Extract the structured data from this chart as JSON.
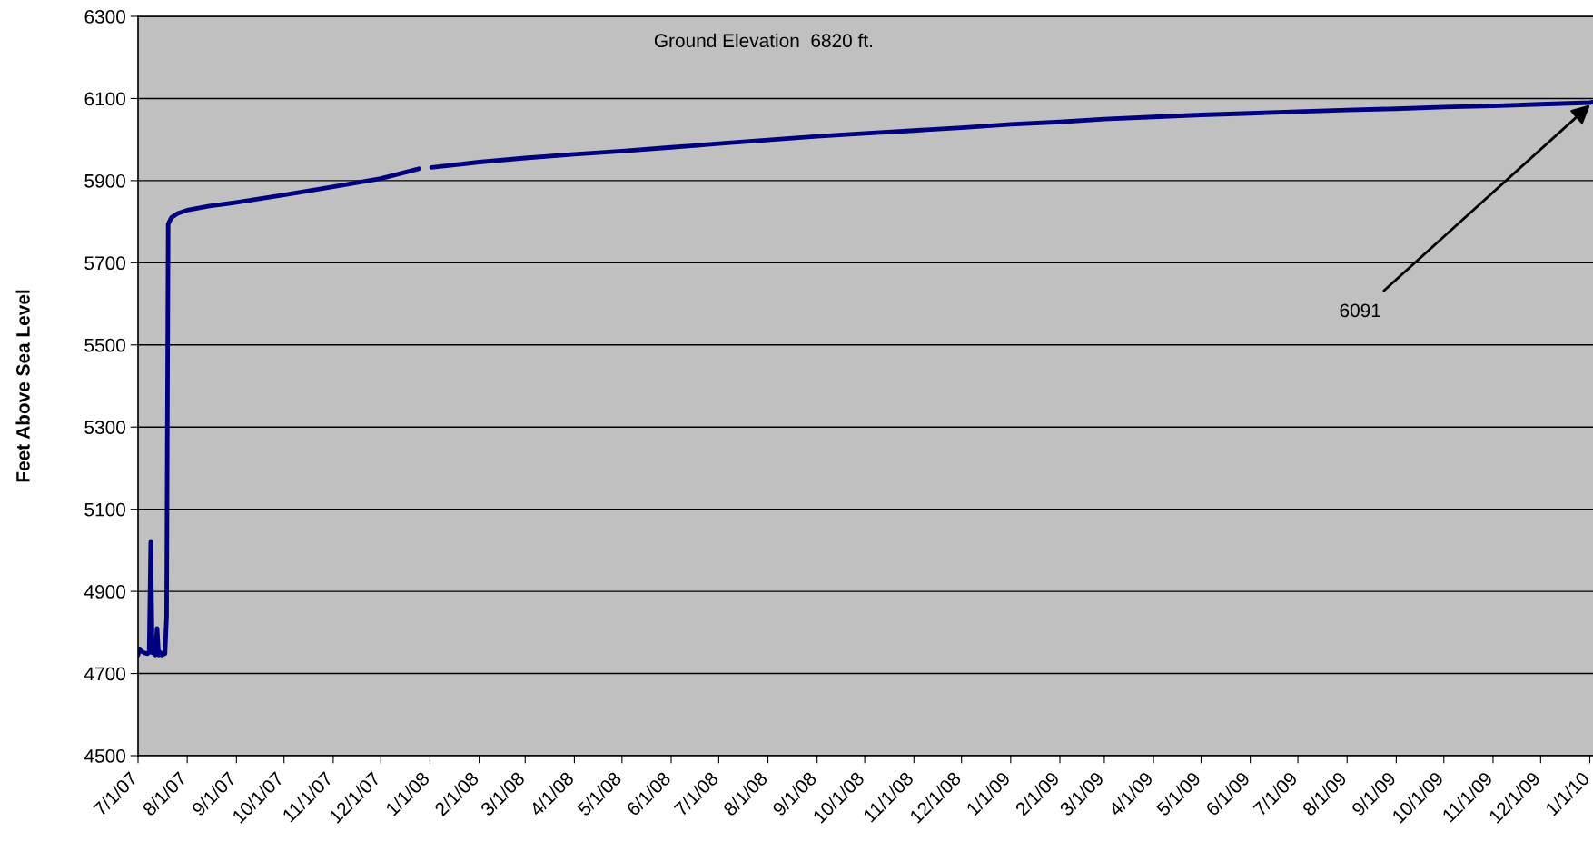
{
  "chart_data": {
    "type": "line",
    "ylabel": "Feet Above Sea Level",
    "annotations": [
      "Ground Elevation  6820 ft.",
      {
        "text": "6091",
        "x": "2010-01-03",
        "y": 6091
      }
    ],
    "x": [
      "2007-07-01",
      "2007-07-02",
      "2007-07-03",
      "2007-07-05",
      "2007-07-07",
      "2007-07-08",
      "2007-07-09",
      "2007-07-10",
      "2007-07-11",
      "2007-07-12",
      "2007-07-13",
      "2007-07-14",
      "2007-07-15",
      "2007-07-16",
      "2007-07-18",
      "2007-07-19",
      "2007-07-20",
      "2007-07-22",
      "2007-07-26",
      "2007-08-01",
      "2007-08-15",
      "2007-09-01",
      "2007-10-01",
      "2007-11-01",
      "2007-12-01",
      "2007-12-25",
      "2007-12-29",
      "2008-01-02",
      "2008-02-01",
      "2008-03-01",
      "2008-04-01",
      "2008-05-01",
      "2008-06-01",
      "2008-07-01",
      "2008-08-01",
      "2008-09-01",
      "2008-10-01",
      "2008-11-01",
      "2008-12-01",
      "2009-01-01",
      "2009-02-01",
      "2009-03-01",
      "2009-04-01",
      "2009-05-01",
      "2009-06-01",
      "2009-07-01",
      "2009-08-01",
      "2009-09-01",
      "2009-10-01",
      "2009-11-01",
      "2009-12-01",
      "2010-01-01",
      "2010-01-03"
    ],
    "series": [
      {
        "color": "#000080",
        "values": [
          4745,
          4760,
          4755,
          4750,
          4748,
          4752,
          5020,
          4750,
          4752,
          4745,
          4810,
          4745,
          4752,
          4745,
          4748,
          4840,
          5794,
          5810,
          5820,
          5828,
          5838,
          5847,
          5865,
          5885,
          5905,
          5929,
          null,
          5932,
          5945,
          5955,
          5964,
          5972,
          5981,
          5990,
          5999,
          6008,
          6015,
          6022,
          6029,
          6037,
          6043,
          6050,
          6055,
          6060,
          6064,
          6068,
          6072,
          6075,
          6079,
          6082,
          6086,
          6090,
          6091
        ]
      }
    ],
    "xlim": [
      "2007-07-01",
      "2010-01-03"
    ],
    "xticks": [
      {
        "value": "2007-07-01",
        "label": "7/1/07"
      },
      {
        "value": "2007-08-01",
        "label": "8/1/07"
      },
      {
        "value": "2007-09-01",
        "label": "9/1/07"
      },
      {
        "value": "2007-10-01",
        "label": "10/1/07"
      },
      {
        "value": "2007-11-01",
        "label": "11/1/07"
      },
      {
        "value": "2007-12-01",
        "label": "12/1/07"
      },
      {
        "value": "2008-01-01",
        "label": "1/1/08"
      },
      {
        "value": "2008-02-01",
        "label": "2/1/08"
      },
      {
        "value": "2008-03-01",
        "label": "3/1/08"
      },
      {
        "value": "2008-04-01",
        "label": "4/1/08"
      },
      {
        "value": "2008-05-01",
        "label": "5/1/08"
      },
      {
        "value": "2008-06-01",
        "label": "6/1/08"
      },
      {
        "value": "2008-07-01",
        "label": "7/1/08"
      },
      {
        "value": "2008-08-01",
        "label": "8/1/08"
      },
      {
        "value": "2008-09-01",
        "label": "9/1/08"
      },
      {
        "value": "2008-10-01",
        "label": "10/1/08"
      },
      {
        "value": "2008-11-01",
        "label": "11/1/08"
      },
      {
        "value": "2008-12-01",
        "label": "12/1/08"
      },
      {
        "value": "2009-01-01",
        "label": "1/1/09"
      },
      {
        "value": "2009-02-01",
        "label": "2/1/09"
      },
      {
        "value": "2009-03-01",
        "label": "3/1/09"
      },
      {
        "value": "2009-04-01",
        "label": "4/1/09"
      },
      {
        "value": "2009-05-01",
        "label": "5/1/09"
      },
      {
        "value": "2009-06-01",
        "label": "6/1/09"
      },
      {
        "value": "2009-07-01",
        "label": "7/1/09"
      },
      {
        "value": "2009-08-01",
        "label": "8/1/09"
      },
      {
        "value": "2009-09-01",
        "label": "9/1/09"
      },
      {
        "value": "2009-10-01",
        "label": "10/1/09"
      },
      {
        "value": "2009-11-01",
        "label": "11/1/09"
      },
      {
        "value": "2009-12-01",
        "label": "12/1/09"
      },
      {
        "value": "2010-01-01",
        "label": "1/1/10"
      }
    ],
    "ylim": [
      4500,
      6300
    ],
    "yticks": [
      4500,
      4700,
      4900,
      5100,
      5300,
      5500,
      5700,
      5900,
      6100,
      6300
    ],
    "grid": "y",
    "legend": false,
    "marker": "none",
    "line_style": "solid"
  }
}
